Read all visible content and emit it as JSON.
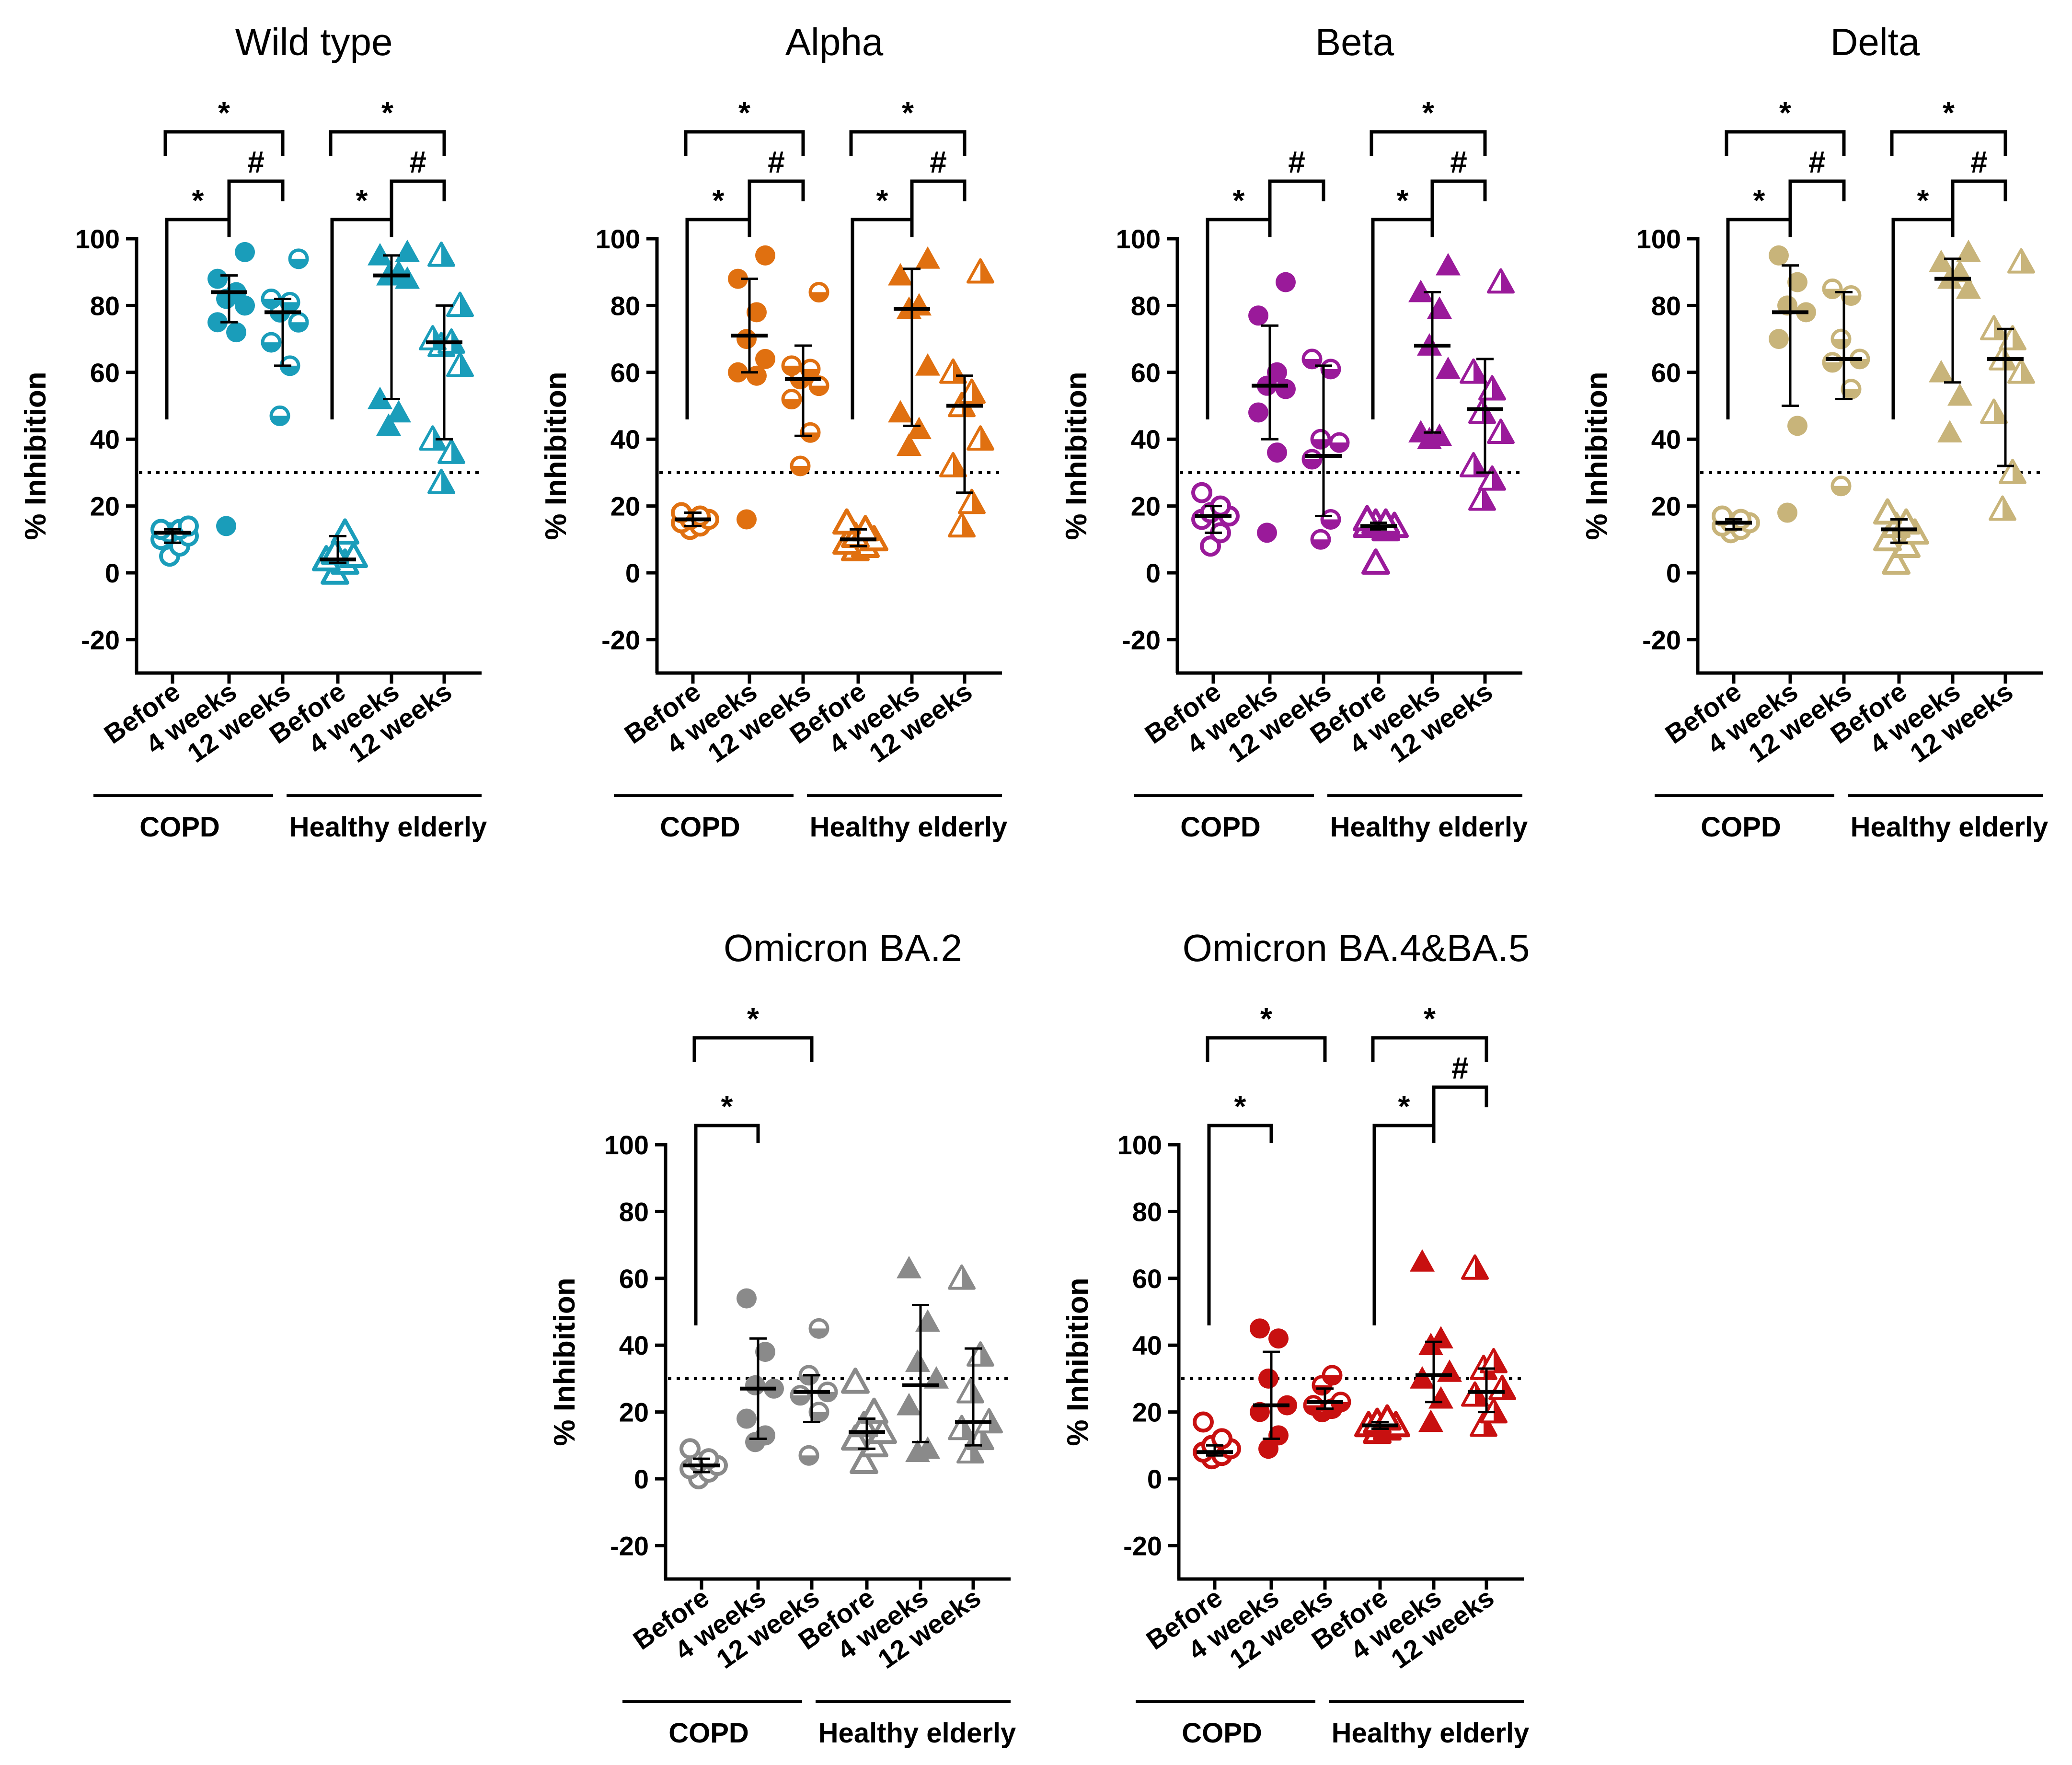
{
  "figure": {
    "threshold": 30,
    "ylim": [
      -30,
      100
    ],
    "yticks": [
      100,
      80,
      60,
      40,
      20,
      0,
      -20
    ],
    "ylabel": "% Inhibition",
    "categories": [
      "Before",
      "4 weeks",
      "12 weeks",
      "Before",
      "4 weeks",
      "12 weeks"
    ],
    "groups": [
      "COPD",
      "Healthy elderly"
    ]
  },
  "chart_data": [
    {
      "type": "scatter",
      "title": "Wild type",
      "color": "#1a9dba",
      "ylabel": "% Inhibition",
      "ylim": [
        -30,
        100
      ],
      "series": [
        {
          "name": "COPD Before",
          "values": [
            5,
            8,
            10,
            11,
            12,
            13,
            13,
            14
          ],
          "median": 12,
          "q1": 9,
          "q3": 13
        },
        {
          "name": "COPD 4 weeks",
          "values": [
            14,
            72,
            75,
            80,
            82,
            84,
            88,
            96
          ],
          "median": 84,
          "q1": 75,
          "q3": 89
        },
        {
          "name": "COPD 12 weeks",
          "values": [
            47,
            62,
            69,
            75,
            78,
            81,
            82,
            94
          ],
          "median": 78,
          "q1": 62,
          "q3": 82
        },
        {
          "name": "Healthy elderly Before",
          "values": [
            0,
            3,
            4,
            5,
            6,
            12
          ],
          "median": 4,
          "q1": 3,
          "q3": 11
        },
        {
          "name": "Healthy elderly 4 weeks",
          "values": [
            44,
            48,
            52,
            88,
            89,
            90,
            95,
            96
          ],
          "median": 89,
          "q1": 52,
          "q3": 95
        },
        {
          "name": "Healthy elderly 12 weeks",
          "values": [
            27,
            36,
            40,
            62,
            68,
            69,
            70,
            80,
            95
          ],
          "median": 69,
          "q1": 40,
          "q3": 80
        }
      ],
      "significance": [
        {
          "from": 0,
          "to": 1,
          "label": "*"
        },
        {
          "from": 1,
          "to": 2,
          "label": "#"
        },
        {
          "from": 0,
          "to": 2,
          "label": "*"
        },
        {
          "from": 3,
          "to": 4,
          "label": "*"
        },
        {
          "from": 4,
          "to": 5,
          "label": "#"
        },
        {
          "from": 3,
          "to": 5,
          "label": "*"
        }
      ]
    },
    {
      "type": "scatter",
      "title": "Alpha",
      "color": "#e07010",
      "ylabel": "% Inhibition",
      "ylim": [
        -30,
        100
      ],
      "series": [
        {
          "name": "COPD Before",
          "values": [
            13,
            14,
            15,
            16,
            16,
            17,
            18
          ],
          "median": 16,
          "q1": 14,
          "q3": 18
        },
        {
          "name": "COPD 4 weeks",
          "values": [
            16,
            59,
            60,
            64,
            70,
            78,
            88,
            95
          ],
          "median": 71,
          "q1": 60,
          "q3": 88
        },
        {
          "name": "COPD 12 weeks",
          "values": [
            32,
            42,
            52,
            56,
            58,
            61,
            62,
            84
          ],
          "median": 58,
          "q1": 41,
          "q3": 68
        },
        {
          "name": "Healthy elderly Before",
          "values": [
            7,
            8,
            9,
            10,
            11,
            13,
            15
          ],
          "median": 10,
          "q1": 8,
          "q3": 13
        },
        {
          "name": "Healthy elderly 4 weeks",
          "values": [
            38,
            43,
            48,
            62,
            79,
            80,
            89,
            94
          ],
          "median": 79,
          "q1": 44,
          "q3": 91
        },
        {
          "name": "Healthy elderly 12 weeks",
          "values": [
            14,
            21,
            32,
            40,
            50,
            54,
            60,
            90
          ],
          "median": 50,
          "q1": 24,
          "q3": 59
        }
      ],
      "significance": [
        {
          "from": 0,
          "to": 1,
          "label": "*"
        },
        {
          "from": 1,
          "to": 2,
          "label": "#"
        },
        {
          "from": 0,
          "to": 2,
          "label": "*"
        },
        {
          "from": 3,
          "to": 4,
          "label": "*"
        },
        {
          "from": 4,
          "to": 5,
          "label": "#"
        },
        {
          "from": 3,
          "to": 5,
          "label": "*"
        }
      ]
    },
    {
      "type": "scatter",
      "title": "Beta",
      "color": "#9a1a9a",
      "ylabel": "% Inhibition",
      "ylim": [
        -30,
        100
      ],
      "series": [
        {
          "name": "COPD Before",
          "values": [
            8,
            12,
            16,
            17,
            18,
            20,
            24
          ],
          "median": 17,
          "q1": 12,
          "q3": 20
        },
        {
          "name": "COPD 4 weeks",
          "values": [
            12,
            36,
            48,
            55,
            56,
            60,
            77,
            87
          ],
          "median": 56,
          "q1": 40,
          "q3": 74
        },
        {
          "name": "COPD 12 weeks",
          "values": [
            10,
            16,
            34,
            39,
            40,
            61,
            64
          ],
          "median": 35,
          "q1": 17,
          "q3": 62
        },
        {
          "name": "Healthy elderly Before",
          "values": [
            3,
            13,
            14,
            14,
            15,
            15,
            16
          ],
          "median": 14,
          "q1": 13,
          "q3": 15
        },
        {
          "name": "Healthy elderly 4 weeks",
          "values": [
            40,
            41,
            42,
            61,
            68,
            79,
            84,
            92
          ],
          "median": 68,
          "q1": 42,
          "q3": 84
        },
        {
          "name": "Healthy elderly 12 weeks",
          "values": [
            22,
            28,
            32,
            42,
            48,
            55,
            60,
            87
          ],
          "median": 49,
          "q1": 30,
          "q3": 64
        }
      ],
      "significance": [
        {
          "from": 0,
          "to": 1,
          "label": "*"
        },
        {
          "from": 1,
          "to": 2,
          "label": "#"
        },
        {
          "from": 3,
          "to": 4,
          "label": "*"
        },
        {
          "from": 4,
          "to": 5,
          "label": "#"
        },
        {
          "from": 3,
          "to": 5,
          "label": "*"
        }
      ]
    },
    {
      "type": "scatter",
      "title": "Delta",
      "color": "#c8b47a",
      "ylabel": "% Inhibition",
      "ylim": [
        -30,
        100
      ],
      "series": [
        {
          "name": "COPD Before",
          "values": [
            12,
            13,
            14,
            15,
            15,
            16,
            17
          ],
          "median": 15,
          "q1": 13,
          "q3": 16
        },
        {
          "name": "COPD 4 weeks",
          "values": [
            18,
            44,
            70,
            78,
            80,
            87,
            95
          ],
          "median": 78,
          "q1": 50,
          "q3": 92
        },
        {
          "name": "COPD 12 weeks",
          "values": [
            26,
            55,
            63,
            64,
            70,
            83,
            85
          ],
          "median": 64,
          "q1": 52,
          "q3": 84
        },
        {
          "name": "Healthy elderly Before",
          "values": [
            3,
            8,
            10,
            12,
            14,
            15,
            18
          ],
          "median": 13,
          "q1": 9,
          "q3": 16
        },
        {
          "name": "Healthy elderly 4 weeks",
          "values": [
            42,
            53,
            60,
            85,
            88,
            90,
            93,
            96
          ],
          "median": 88,
          "q1": 57,
          "q3": 94
        },
        {
          "name": "Healthy elderly 12 weeks",
          "values": [
            19,
            30,
            48,
            60,
            64,
            70,
            73,
            93
          ],
          "median": 64,
          "q1": 32,
          "q3": 73
        }
      ],
      "significance": [
        {
          "from": 0,
          "to": 1,
          "label": "*"
        },
        {
          "from": 1,
          "to": 2,
          "label": "#"
        },
        {
          "from": 0,
          "to": 2,
          "label": "*"
        },
        {
          "from": 3,
          "to": 4,
          "label": "*"
        },
        {
          "from": 4,
          "to": 5,
          "label": "#"
        },
        {
          "from": 3,
          "to": 5,
          "label": "*"
        }
      ]
    },
    {
      "type": "scatter",
      "title": "Omicron BA.2",
      "color": "#8a8a8a",
      "ylabel": "% Inhibition",
      "ylim": [
        -30,
        100
      ],
      "series": [
        {
          "name": "COPD Before",
          "values": [
            0,
            2,
            3,
            4,
            5,
            6,
            9
          ],
          "median": 4,
          "q1": 2,
          "q3": 6
        },
        {
          "name": "COPD 4 weeks",
          "values": [
            11,
            13,
            18,
            27,
            28,
            38,
            54
          ],
          "median": 27,
          "q1": 12,
          "q3": 42
        },
        {
          "name": "COPD 12 weeks",
          "values": [
            7,
            20,
            25,
            26,
            31,
            45
          ],
          "median": 26,
          "q1": 17,
          "q3": 31
        },
        {
          "name": "Healthy elderly Before",
          "values": [
            5,
            10,
            12,
            14,
            16,
            20,
            29
          ],
          "median": 14,
          "q1": 9,
          "q3": 18
        },
        {
          "name": "Healthy elderly 4 weeks",
          "values": [
            8,
            9,
            22,
            30,
            35,
            47,
            63
          ],
          "median": 28,
          "q1": 11,
          "q3": 52
        },
        {
          "name": "Healthy elderly 12 weeks",
          "values": [
            8,
            12,
            15,
            17,
            26,
            37,
            60
          ],
          "median": 17,
          "q1": 10,
          "q3": 39
        }
      ],
      "significance": [
        {
          "from": 0,
          "to": 1,
          "label": "*"
        },
        {
          "from": 0,
          "to": 2,
          "label": "*"
        }
      ]
    },
    {
      "type": "scatter",
      "title": "Omicron BA.4&BA.5",
      "color": "#c81010",
      "ylabel": "% Inhibition",
      "ylim": [
        -30,
        100
      ],
      "series": [
        {
          "name": "COPD Before",
          "values": [
            6,
            7,
            8,
            9,
            10,
            12,
            17
          ],
          "median": 8,
          "q1": 7,
          "q3": 10
        },
        {
          "name": "COPD 4 weeks",
          "values": [
            9,
            13,
            20,
            22,
            30,
            42,
            45
          ],
          "median": 22,
          "q1": 12,
          "q3": 38
        },
        {
          "name": "COPD 12 weeks",
          "values": [
            20,
            21,
            22,
            23,
            28,
            31
          ],
          "median": 23,
          "q1": 21,
          "q3": 27
        },
        {
          "name": "Healthy elderly Before",
          "values": [
            14,
            15,
            16,
            16,
            17,
            18
          ],
          "median": 16,
          "q1": 15,
          "q3": 17
        },
        {
          "name": "Healthy elderly 4 weeks",
          "values": [
            17,
            24,
            30,
            32,
            40,
            42,
            65
          ],
          "median": 31,
          "q1": 23,
          "q3": 41
        },
        {
          "name": "Healthy elderly 12 weeks",
          "values": [
            16,
            20,
            25,
            27,
            33,
            35,
            63
          ],
          "median": 26,
          "q1": 20,
          "q3": 33
        }
      ],
      "significance": [
        {
          "from": 0,
          "to": 1,
          "label": "*"
        },
        {
          "from": 0,
          "to": 2,
          "label": "*"
        },
        {
          "from": 3,
          "to": 4,
          "label": "*"
        },
        {
          "from": 4,
          "to": 5,
          "label": "#"
        },
        {
          "from": 3,
          "to": 5,
          "label": "*"
        }
      ]
    }
  ]
}
